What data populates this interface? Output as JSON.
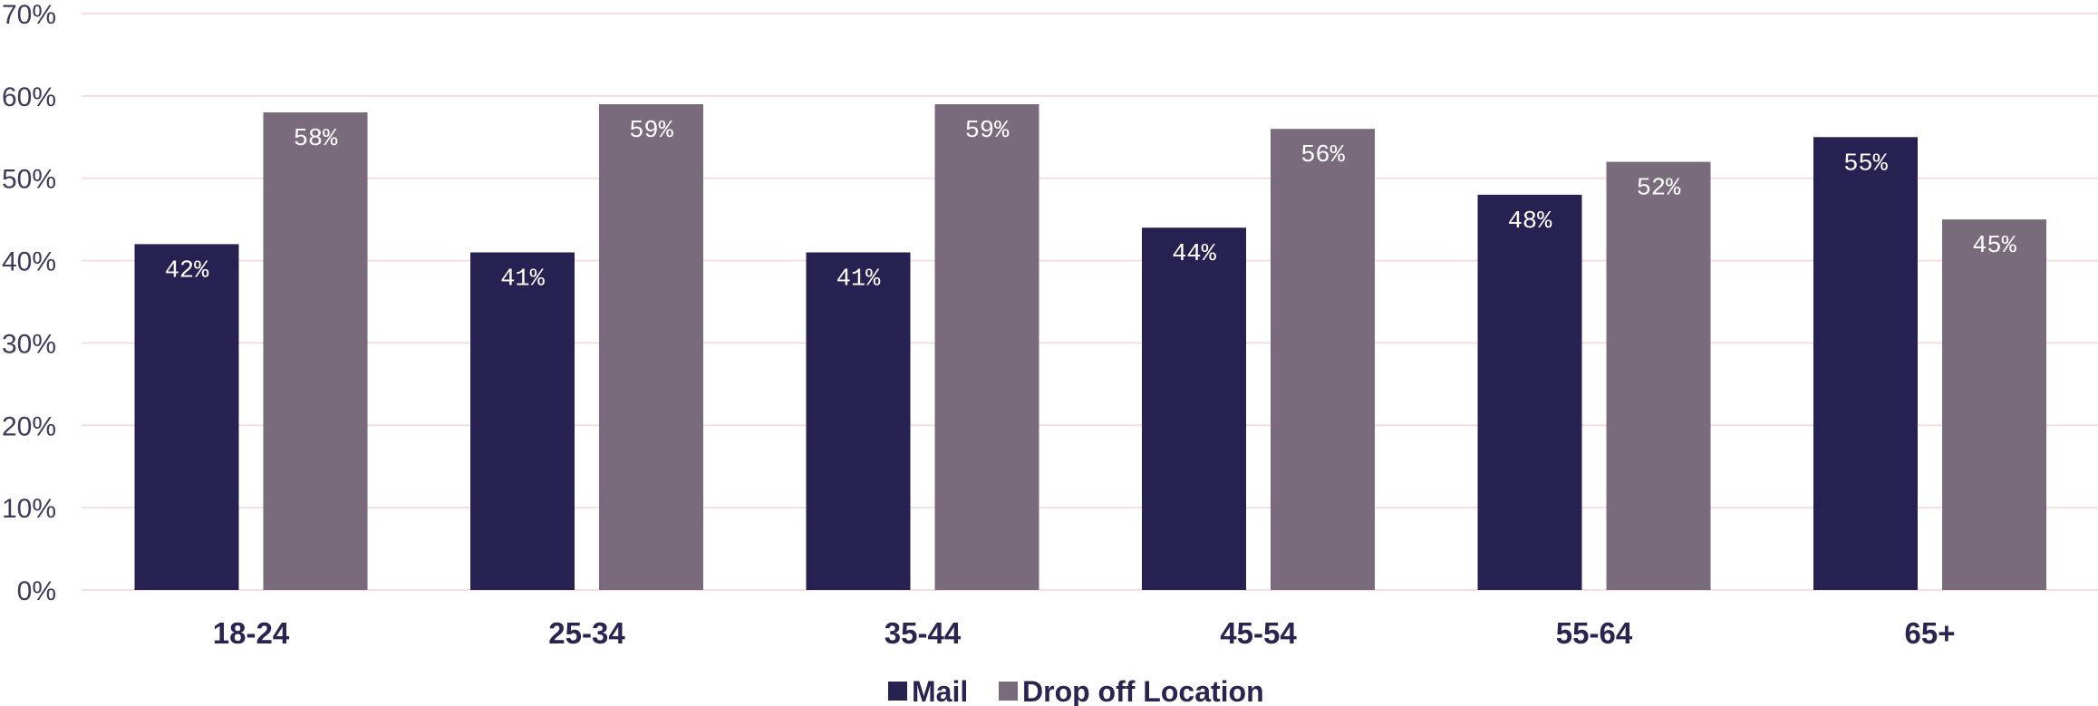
{
  "chart_data": {
    "type": "bar",
    "categories": [
      "18-24",
      "25-34",
      "35-44",
      "45-54",
      "55-64",
      "65+"
    ],
    "series": [
      {
        "name": "Mail",
        "values": [
          42,
          41,
          41,
          44,
          48,
          55
        ],
        "labels": [
          "42%",
          "41%",
          "41%",
          "44%",
          "48%",
          "55%"
        ],
        "color": "#272152"
      },
      {
        "name": "Drop off Location",
        "values": [
          58,
          59,
          59,
          56,
          52,
          45
        ],
        "labels": [
          "58%",
          "59%",
          "59%",
          "56%",
          "52%",
          "45%"
        ],
        "color": "#796a7c"
      }
    ],
    "yticks": [
      "0%",
      "10%",
      "20%",
      "30%",
      "40%",
      "50%",
      "60%",
      "70%"
    ],
    "ylim": [
      0,
      70
    ],
    "grid": true,
    "legend_position": "bottom-center",
    "gridline_color": "#f6dde4",
    "title": "",
    "xlabel": "",
    "ylabel": ""
  }
}
